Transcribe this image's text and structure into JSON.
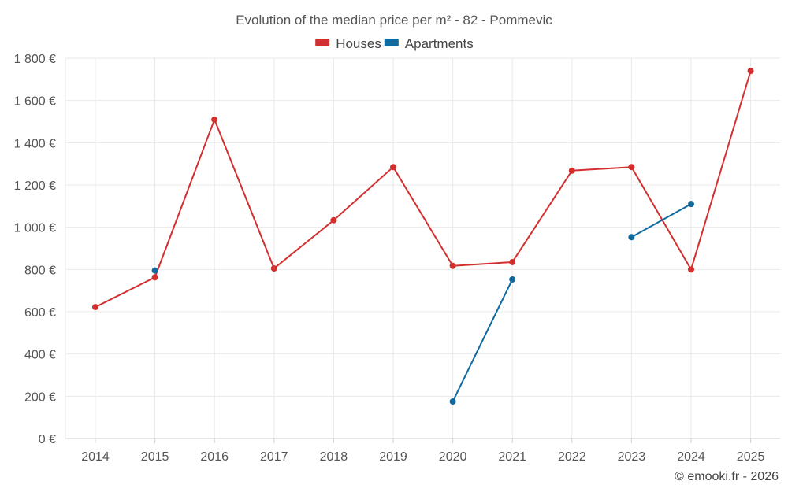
{
  "chart_data": {
    "type": "line",
    "title": "Evolution of the median price per m² - 82 - Pommevic",
    "categories": [
      "2014",
      "2015",
      "2016",
      "2017",
      "2018",
      "2019",
      "2020",
      "2021",
      "2022",
      "2023",
      "2024",
      "2025"
    ],
    "ylim": [
      0,
      1800
    ],
    "yticks": [
      0,
      200,
      400,
      600,
      800,
      1000,
      1200,
      1400,
      1600,
      1800
    ],
    "ytick_labels": [
      "0 €",
      "200 €",
      "400 €",
      "600 €",
      "800 €",
      "1 000 €",
      "1 200 €",
      "1 400 €",
      "1 600 €",
      "1 800 €"
    ],
    "grid": true,
    "legend_position": "top-center",
    "series": [
      {
        "name": "Houses",
        "color": "#d32f2f",
        "values": [
          622,
          763,
          1510,
          805,
          1033,
          1285,
          817,
          835,
          1268,
          1285,
          800,
          1740
        ]
      },
      {
        "name": "Apartments",
        "color": "#0f6aa0",
        "values": [
          null,
          795,
          null,
          null,
          null,
          null,
          175,
          753,
          null,
          953,
          1110,
          null
        ]
      }
    ]
  },
  "credit": "© emooki.fr - 2026"
}
